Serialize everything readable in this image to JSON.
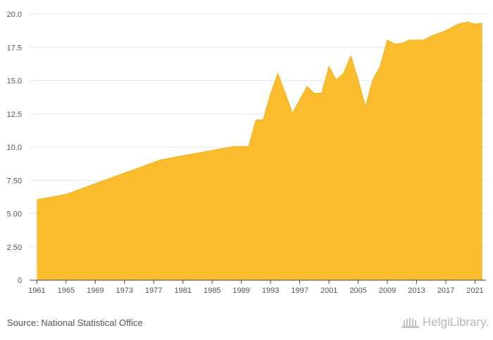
{
  "chart_data": {
    "type": "area",
    "x": [
      1961,
      1962,
      1963,
      1964,
      1965,
      1966,
      1967,
      1968,
      1969,
      1970,
      1971,
      1972,
      1973,
      1974,
      1975,
      1976,
      1977,
      1978,
      1979,
      1980,
      1981,
      1982,
      1983,
      1984,
      1985,
      1986,
      1987,
      1988,
      1989,
      1990,
      1991,
      1992,
      1993,
      1994,
      1995,
      1996,
      1997,
      1998,
      1999,
      2000,
      2001,
      2002,
      2003,
      2004,
      2005,
      2006,
      2007,
      2008,
      2009,
      2010,
      2011,
      2012,
      2013,
      2014,
      2015,
      2016,
      2017,
      2018,
      2019,
      2020,
      2021,
      2022
    ],
    "series": [
      {
        "values": [
          6.05,
          6.15,
          6.25,
          6.35,
          6.45,
          6.65,
          6.85,
          7.05,
          7.25,
          7.45,
          7.65,
          7.85,
          8.05,
          8.25,
          8.45,
          8.65,
          8.85,
          9.05,
          9.15,
          9.25,
          9.35,
          9.45,
          9.55,
          9.65,
          9.75,
          9.85,
          9.95,
          10.05,
          10.05,
          10.05,
          12.05,
          12.05,
          14.0,
          15.55,
          14.05,
          12.55,
          13.55,
          14.55,
          14.05,
          14.05,
          16.05,
          15.05,
          15.55,
          16.85,
          15.05,
          13.05,
          15.05,
          16.05,
          18.05,
          17.75,
          17.8,
          18.05,
          18.05,
          18.05,
          18.35,
          18.55,
          18.75,
          19.05,
          19.3,
          19.4,
          19.25,
          19.3
        ]
      }
    ],
    "xticks": [
      "1961",
      "1965",
      "1969",
      "1973",
      "1977",
      "1981",
      "1985",
      "1989",
      "1993",
      "1997",
      "2001",
      "2005",
      "2009",
      "2013",
      "2017",
      "2021"
    ],
    "yticks": [
      "0",
      "2.50",
      "5.00",
      "7.50",
      "10.0",
      "12.5",
      "15.0",
      "17.5",
      "20.0"
    ],
    "ylim": [
      0,
      20
    ],
    "xlim": [
      1960,
      2022.5
    ],
    "grid": true,
    "colors": {
      "fill": "#FBBD2E",
      "stroke": "#F0AE1A",
      "grid": "#e6e6e6",
      "axis": "#444444"
    }
  },
  "footer": {
    "source": "Source: National Statistical Office",
    "brand": "HelgiLibrary."
  }
}
